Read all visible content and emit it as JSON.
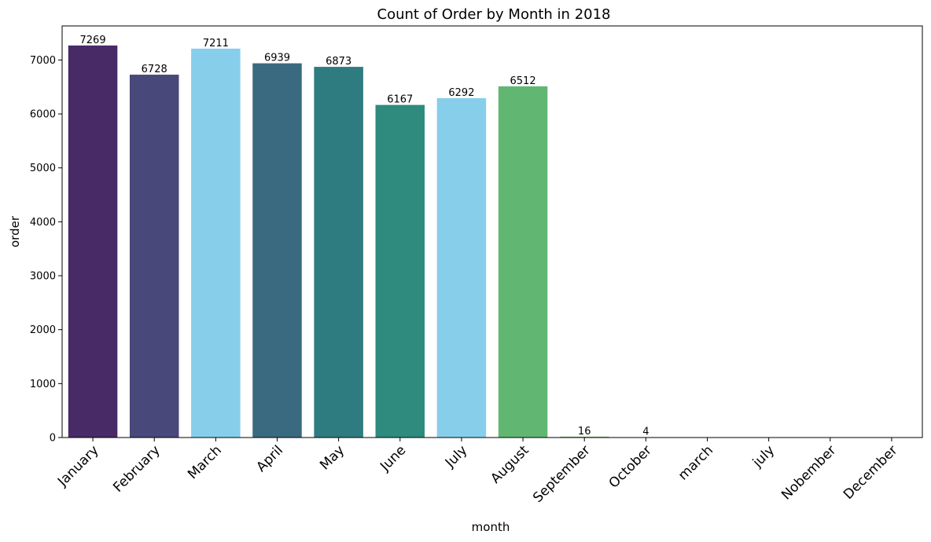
{
  "chart_data": {
    "type": "bar",
    "title": "Count of Order by Month in 2018",
    "xlabel": "month",
    "ylabel": "order",
    "categories": [
      "January",
      "February",
      "March",
      "April",
      "May",
      "June",
      "July",
      "August",
      "September",
      "October",
      "march",
      "july",
      "Nobember",
      "December"
    ],
    "values": [
      7269,
      6728,
      7211,
      6939,
      6873,
      6167,
      6292,
      6512,
      16,
      4,
      0,
      0,
      0,
      0
    ],
    "data_labels": [
      "7269",
      "6728",
      "7211",
      "6939",
      "6873",
      "6167",
      "6292",
      "6512",
      "16",
      "4",
      "",
      "",
      "",
      ""
    ],
    "colors": [
      "#482a67",
      "#48487a",
      "#87ceeb",
      "#3a6a80",
      "#2e7b80",
      "#2e8b7d",
      "#87ceeb",
      "#61b772",
      "#79c25e",
      "#87ceeb",
      "#87ceeb",
      "#87ceeb",
      "#87ceeb",
      "#87ceeb"
    ],
    "ylim": [
      0,
      7632
    ],
    "yticks": [
      0,
      1000,
      2000,
      3000,
      4000,
      5000,
      6000,
      7000
    ],
    "grid": false,
    "legend": "none"
  }
}
